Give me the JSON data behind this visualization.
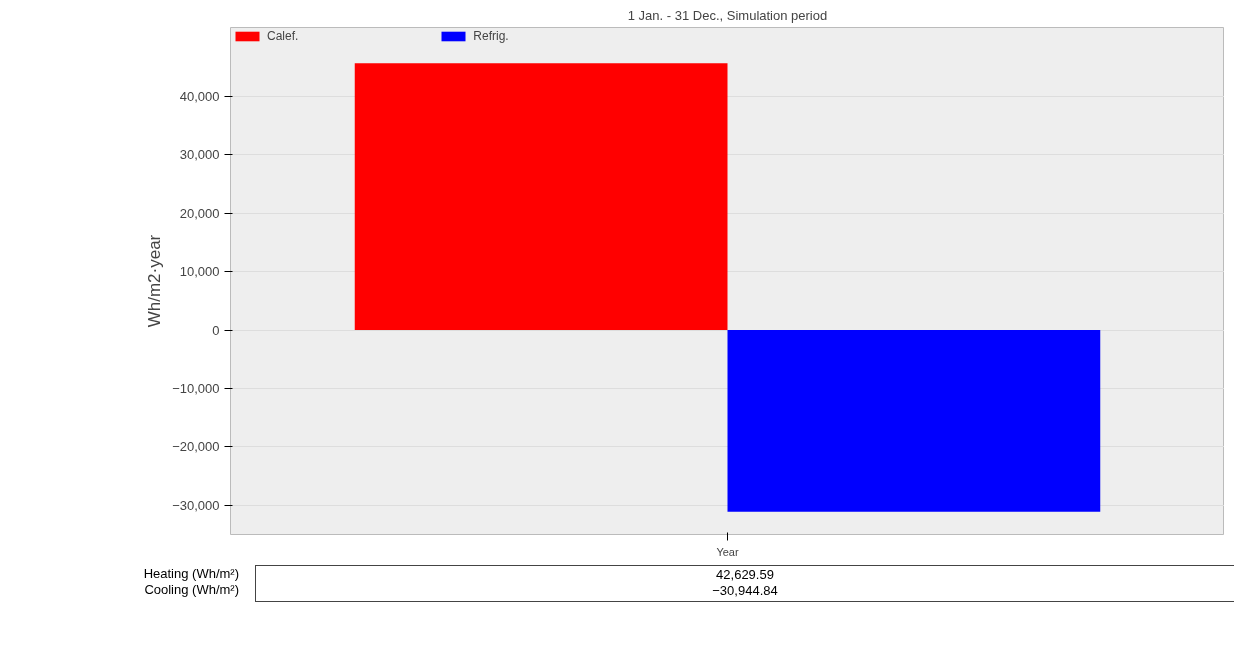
{
  "chart_data": {
    "type": "bar",
    "title": "1 Jan. - 31 Dec., Simulation period",
    "ylabel": "Wh/m2·year",
    "categories": [
      "Year"
    ],
    "series": [
      {
        "name": "Calef.",
        "color": "#ff0000",
        "values": [
          45700
        ]
      },
      {
        "name": "Refrig.",
        "color": "#0000ff",
        "values": [
          -31100
        ]
      }
    ],
    "ylim": [
      -35000,
      51800
    ],
    "yticks": [
      {
        "value": -30000,
        "label": "−30,000"
      },
      {
        "value": -20000,
        "label": "−20,000"
      },
      {
        "value": -10000,
        "label": "−10,000"
      },
      0,
      {
        "value": 10000,
        "label": "10,000"
      },
      {
        "value": 20000,
        "label": "20,000"
      },
      {
        "value": 30000,
        "label": "30,000"
      },
      {
        "value": 40000,
        "label": "40,000"
      }
    ],
    "grid": "y",
    "legend": "top left",
    "annotations": [
      "Heating (Wh/m²)",
      "Cooling (Wh/m²)",
      "42,629.59",
      "−30,944.84"
    ]
  }
}
